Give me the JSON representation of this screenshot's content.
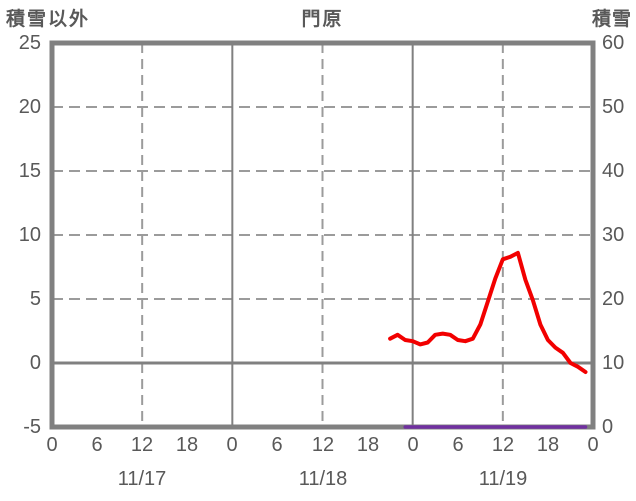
{
  "header": {
    "left_axis_title": "積雪以外",
    "station_title": "門原",
    "right_axis_title": "積雪"
  },
  "colors": {
    "text": "#595959",
    "frame": "#808080",
    "grid_solid": "#808080",
    "grid_dashed": "#9b9b9b",
    "zero_line": "#808080",
    "red_series": "#f20000",
    "purple_series": "#7030a0"
  },
  "chart_data": {
    "type": "line",
    "title": "門原",
    "left_axis": {
      "label": "積雪以外",
      "min": -5,
      "max": 25,
      "tick_step": 5,
      "ticks": [
        25,
        20,
        15,
        10,
        5,
        0,
        -5
      ]
    },
    "right_axis": {
      "label": "積雪",
      "min": 0,
      "max": 60,
      "tick_step": 10,
      "ticks": [
        60,
        50,
        40,
        30,
        20,
        10,
        0
      ]
    },
    "x_axis": {
      "hours_total": 72,
      "tick_interval_hours": 6,
      "tick_labels": [
        "0",
        "6",
        "12",
        "18",
        "0",
        "6",
        "12",
        "18",
        "0",
        "6",
        "12",
        "18",
        "0"
      ],
      "day_labels": [
        "11/17",
        "11/18",
        "11/19"
      ],
      "solid_gridlines_at_hours": [
        24,
        48
      ],
      "dashed_gridlines_at_hours": [
        12,
        36,
        60
      ]
    },
    "horizontal_gridlines": {
      "dashed_at_left_values": [
        20,
        15,
        10,
        5
      ],
      "solid_at_left_values": [
        0
      ]
    },
    "legend": "none",
    "grid": true,
    "series": [
      {
        "id": "red-series",
        "label": "積雪以外",
        "axis": "left",
        "color": "#f20000",
        "stroke_width": 4,
        "start_time": "11/18 21:00",
        "end_time": "11/19 23:00",
        "start_hour_offset": 45,
        "step_hours": 1,
        "values": [
          1.9,
          2.2,
          1.8,
          1.7,
          1.45,
          1.6,
          2.2,
          2.3,
          2.2,
          1.8,
          1.7,
          1.9,
          3.0,
          4.8,
          6.6,
          8.1,
          8.3,
          8.6,
          6.5,
          4.9,
          3.0,
          1.8,
          1.2,
          0.8,
          0.0,
          -0.3,
          -0.7
        ]
      },
      {
        "id": "purple-series",
        "label": "積雪",
        "axis": "right",
        "color": "#7030a0",
        "stroke_width": 3.5,
        "start_time": "11/18 23:00",
        "end_time": "11/19 23:00",
        "start_hour_offset": 47,
        "step_hours": 1,
        "values": [
          0,
          0,
          0,
          0,
          0,
          0,
          0,
          0,
          0,
          0,
          0,
          0,
          0,
          0,
          0,
          0,
          0,
          0,
          0,
          0,
          0,
          0,
          0,
          0,
          0
        ]
      }
    ]
  }
}
